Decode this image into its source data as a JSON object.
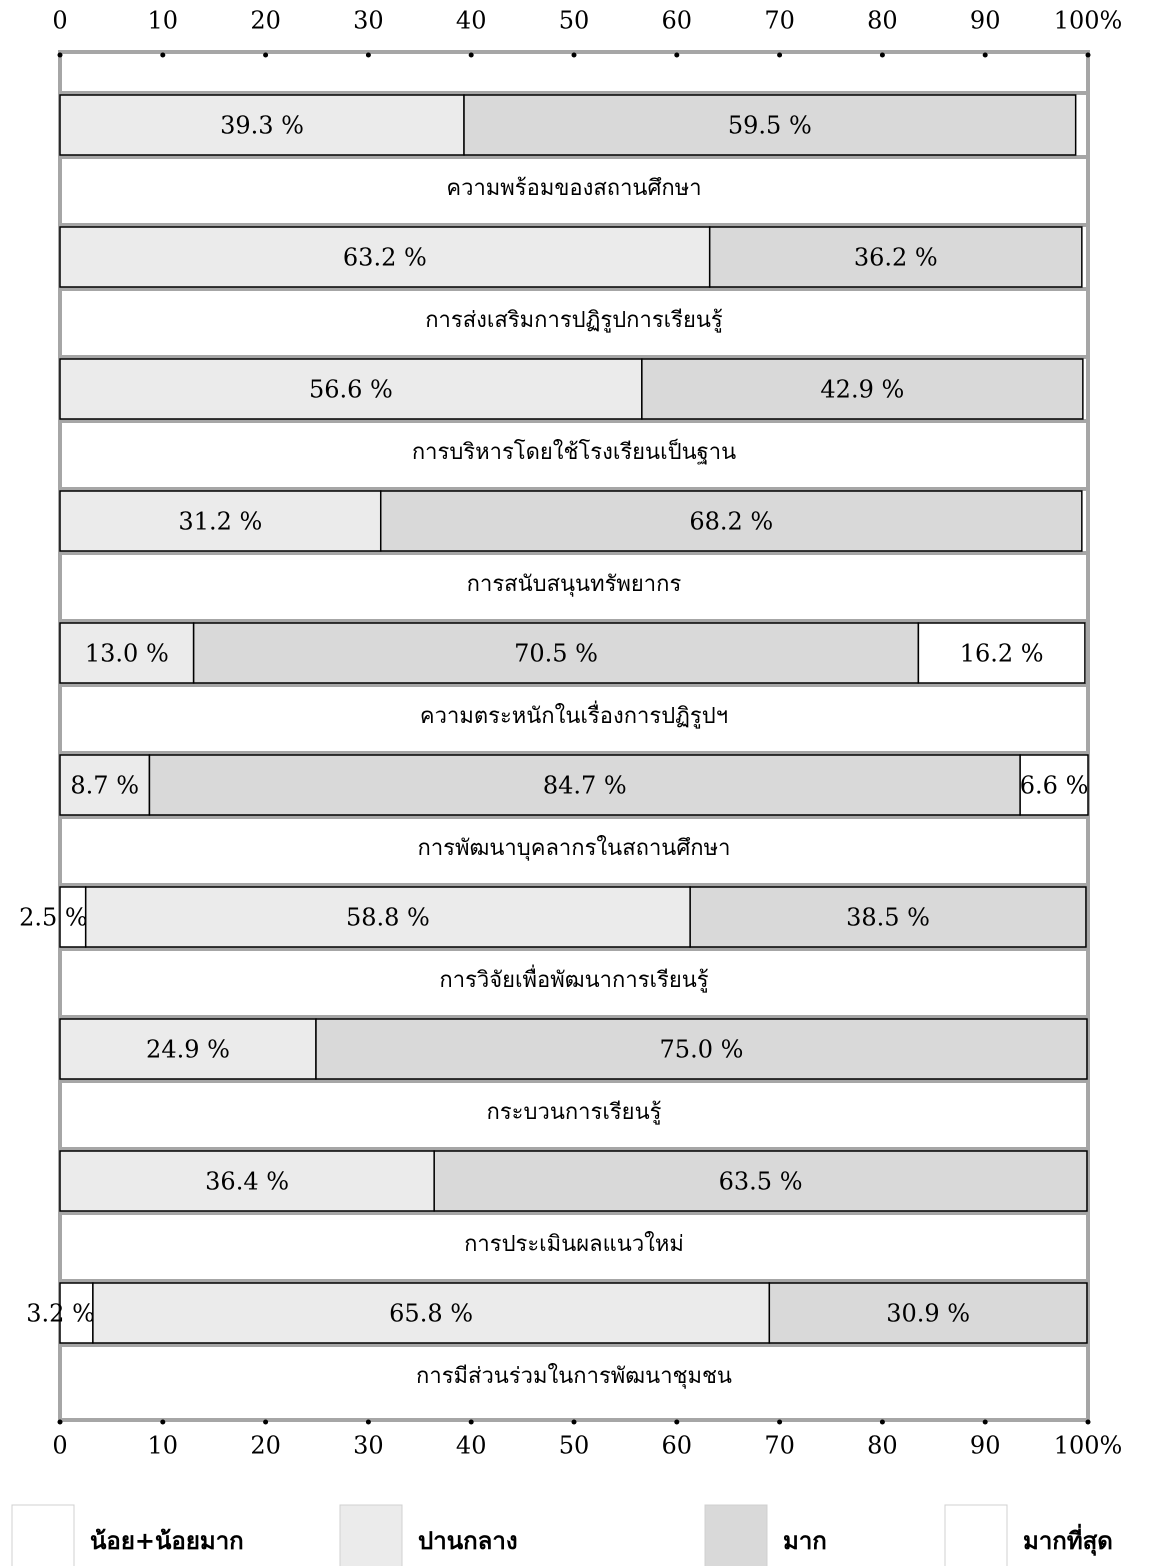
{
  "chart_data": {
    "type": "stacked_barh",
    "categories": [
      "ความพร้อมของสถานศึกษา",
      "การส่งเสริมการปฏิรูปการเรียนรู้",
      "การบริหารโดยใช้โรงเรียนเป็นฐาน",
      "การสนับสนุนทรัพยากร",
      "ความตระหนักในเรื่องการปฏิรูปฯ",
      "การพัฒนาบุคลากรในสถานศึกษา",
      "การวิจัยเพื่อพัฒนาการเรียนรู้",
      "กระบวนการเรียนรู้",
      "การประเมินผลแนวใหม่",
      "การมีส่วนร่วมในการพัฒนาชุมชน"
    ],
    "series": [
      {
        "name": "น้อย+น้อยมาก",
        "color": "#ffffff",
        "values": [
          null,
          null,
          null,
          null,
          null,
          null,
          2.5,
          null,
          null,
          3.2
        ],
        "value_labels": [
          null,
          null,
          null,
          null,
          null,
          null,
          "2.5 %",
          null,
          null,
          "3.2 %"
        ]
      },
      {
        "name": "ปานกลาง",
        "color": "#ebebeb",
        "values": [
          39.3,
          63.2,
          56.6,
          31.2,
          13.0,
          8.7,
          58.8,
          24.9,
          36.4,
          65.8
        ],
        "value_labels": [
          "39.3 %",
          "63.2 %",
          "56.6 %",
          "31.2 %",
          "13.0 %",
          "8.7 %",
          "58.8 %",
          "24.9 %",
          "36.4 %",
          "65.8 %"
        ]
      },
      {
        "name": "มาก",
        "color": "#d9d9d9",
        "values": [
          59.5,
          36.2,
          42.9,
          68.2,
          70.5,
          84.7,
          38.5,
          75.0,
          63.5,
          30.9
        ],
        "value_labels": [
          "59.5 %",
          "36.2 %",
          "42.9 %",
          "68.2 %",
          "70.5 %",
          "84.7 %",
          "38.5 %",
          "75.0 %",
          "63.5 %",
          "30.9 %"
        ]
      },
      {
        "name": "มากที่สุด",
        "color": "#ffffff",
        "values": [
          null,
          null,
          null,
          null,
          16.2,
          6.6,
          null,
          null,
          null,
          null
        ],
        "value_labels": [
          null,
          null,
          null,
          null,
          "16.2 %",
          "6.6 %",
          null,
          null,
          null,
          null
        ]
      }
    ],
    "xlim": [
      0,
      100
    ],
    "xticks": [
      0,
      10,
      20,
      30,
      40,
      50,
      60,
      70,
      80,
      90,
      {
        "value": 100,
        "label": "100%"
      }
    ]
  }
}
